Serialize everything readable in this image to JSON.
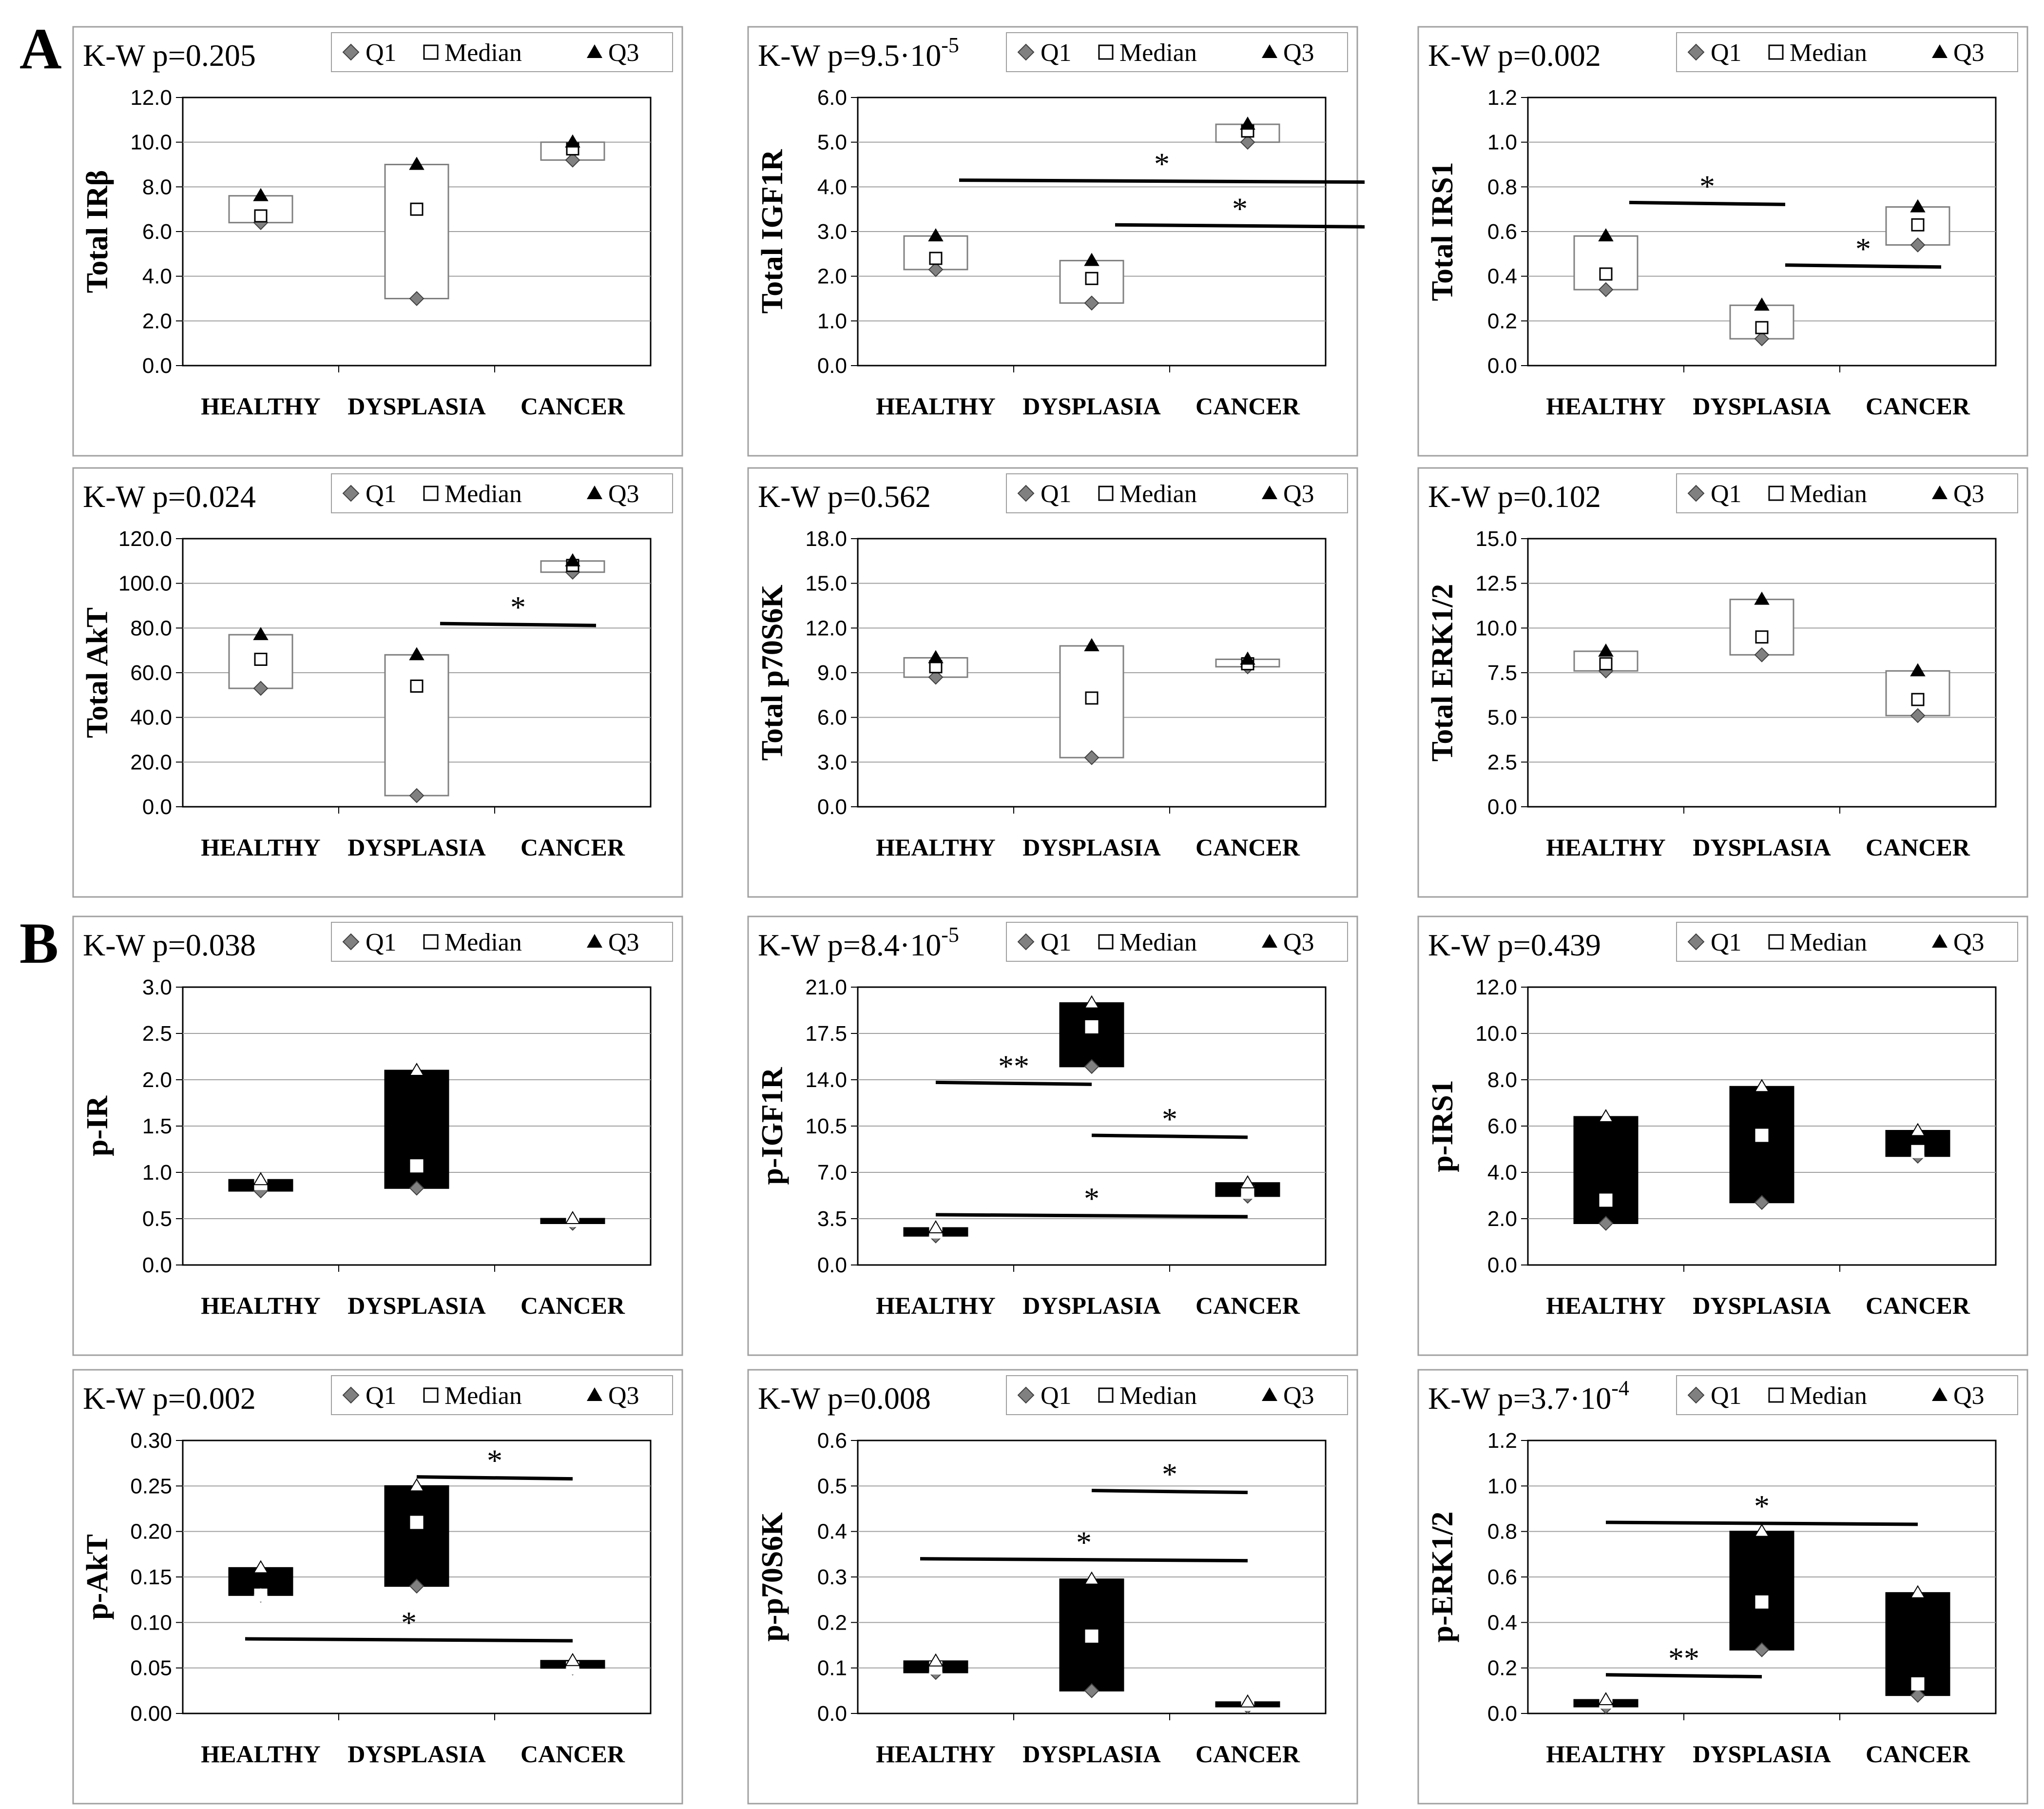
{
  "sections": [
    {
      "label": "A"
    },
    {
      "label": "B"
    }
  ],
  "colors": {
    "white_box": "#ffffff",
    "black_box": "#000000",
    "q1_marker": "#808080",
    "grid": "#a0a0a0",
    "frame": "#a0a0a0"
  },
  "legend_labels": [
    "Q1",
    "Median",
    "Q3"
  ],
  "chart_data": [
    {
      "type": "box-quartile",
      "section": "A",
      "kw": "K-W p=0.205",
      "kw_sup": "",
      "ylabel": "Total IRβ",
      "categories": [
        "HEALTHY",
        "DYSPLASIA",
        "CANCER"
      ],
      "ylim": [
        0,
        12
      ],
      "ticks": [
        "0.0",
        "2.0",
        "4.0",
        "6.0",
        "8.0",
        "10.0",
        "12.0"
      ],
      "box_style": "white",
      "q1": [
        6.4,
        3.0,
        9.2
      ],
      "median": [
        6.7,
        7.0,
        9.7
      ],
      "q3": [
        7.6,
        9.0,
        10.0
      ],
      "sig": [],
      "legend_labels": [
        "Q1",
        "Median",
        "Q3"
      ]
    },
    {
      "type": "box-quartile",
      "section": "A",
      "kw": "K-W p=9.5·10",
      "kw_sup": "-5",
      "ylabel": "Total IGF1R",
      "categories": [
        "HEALTHY",
        "DYSPLASIA",
        "CANCER"
      ],
      "ylim": [
        0,
        6
      ],
      "ticks": [
        "0.0",
        "1.0",
        "2.0",
        "3.0",
        "4.0",
        "5.0",
        "6.0"
      ],
      "box_style": "white",
      "q1": [
        2.15,
        1.4,
        5.0
      ],
      "median": [
        2.4,
        1.95,
        5.25
      ],
      "q3": [
        2.9,
        2.35,
        5.4
      ],
      "sig": [
        {
          "from": 0.15,
          "to": 2.75,
          "y": 4.15,
          "label": "*"
        },
        {
          "from": 1.15,
          "to": 2.75,
          "y": 3.15,
          "label": "*"
        }
      ],
      "legend_labels": [
        "Q1",
        "Median",
        "Q3"
      ]
    },
    {
      "type": "box-quartile",
      "section": "A",
      "kw": "K-W p=0.002",
      "kw_sup": "",
      "ylabel": "Total IRS1",
      "categories": [
        "HEALTHY",
        "DYSPLASIA",
        "CANCER"
      ],
      "ylim": [
        0,
        1.2
      ],
      "ticks": [
        "0.0",
        "0.2",
        "0.4",
        "0.6",
        "0.8",
        "1.0",
        "1.2"
      ],
      "box_style": "white",
      "q1": [
        0.34,
        0.12,
        0.54
      ],
      "median": [
        0.41,
        0.17,
        0.63
      ],
      "q3": [
        0.58,
        0.27,
        0.71
      ],
      "sig": [
        {
          "from": 0.15,
          "to": 1.15,
          "y": 0.73,
          "label": "*"
        },
        {
          "from": 1.15,
          "to": 2.15,
          "y": 0.45,
          "label": "*"
        }
      ],
      "legend_labels": [
        "Q1",
        "Median",
        "Q3"
      ]
    },
    {
      "type": "box-quartile",
      "section": "A",
      "kw": "K-W p=0.024",
      "kw_sup": "",
      "ylabel": "Total AkT",
      "categories": [
        "HEALTHY",
        "DYSPLASIA",
        "CANCER"
      ],
      "ylim": [
        0,
        120
      ],
      "ticks": [
        "0.0",
        "20.0",
        "40.0",
        "60.0",
        "80.0",
        "100.0",
        "120.0"
      ],
      "box_style": "white",
      "q1": [
        53,
        5,
        105
      ],
      "median": [
        66,
        54,
        108
      ],
      "q3": [
        77,
        68,
        110
      ],
      "sig": [
        {
          "from": 1.15,
          "to": 2.15,
          "y": 82,
          "label": "*"
        }
      ],
      "legend_labels": [
        "Q1",
        "Median",
        "Q3"
      ]
    },
    {
      "type": "box-quartile",
      "section": "A",
      "kw": "K-W p=0.562",
      "kw_sup": "",
      "ylabel": "Total p70S6K",
      "categories": [
        "HEALTHY",
        "DYSPLASIA",
        "CANCER"
      ],
      "ylim": [
        0,
        18
      ],
      "ticks": [
        "0.0",
        "3.0",
        "6.0",
        "9.0",
        "12.0",
        "15.0",
        "18.0"
      ],
      "box_style": "white",
      "q1": [
        8.7,
        3.3,
        9.4
      ],
      "median": [
        9.4,
        7.3,
        9.6
      ],
      "q3": [
        10.0,
        10.8,
        9.9
      ],
      "sig": [],
      "legend_labels": [
        "Q1",
        "Median",
        "Q3"
      ]
    },
    {
      "type": "box-quartile",
      "section": "A",
      "kw": "K-W p=0.102",
      "kw_sup": "",
      "ylabel": "Total ERK1/2",
      "categories": [
        "HEALTHY",
        "DYSPLASIA",
        "CANCER"
      ],
      "ylim": [
        0,
        15
      ],
      "ticks": [
        "0.0",
        "2.5",
        "5.0",
        "7.5",
        "10.0",
        "12.5",
        "15.0"
      ],
      "box_style": "white",
      "q1": [
        7.6,
        8.5,
        5.1
      ],
      "median": [
        8.0,
        9.5,
        6.0
      ],
      "q3": [
        8.7,
        11.6,
        7.6
      ],
      "sig": [],
      "legend_labels": [
        "Q1",
        "Median",
        "Q3"
      ]
    },
    {
      "type": "box-quartile",
      "section": "B",
      "kw": "K-W p=0.038",
      "kw_sup": "",
      "ylabel": "p-IR",
      "categories": [
        "HEALTHY",
        "DYSPLASIA",
        "CANCER"
      ],
      "ylim": [
        0,
        3
      ],
      "ticks": [
        "0.0",
        "0.5",
        "1.0",
        "1.5",
        "2.0",
        "2.5",
        "3.0"
      ],
      "box_style": "black",
      "q1": [
        0.8,
        0.83,
        0.45
      ],
      "median": [
        0.88,
        1.07,
        0.48
      ],
      "q3": [
        0.92,
        2.1,
        0.5
      ],
      "sig": [],
      "legend_labels": [
        "Q1",
        "Median",
        "Q3"
      ]
    },
    {
      "type": "box-quartile",
      "section": "B",
      "kw": "K-W p=8.4·10",
      "kw_sup": "-5",
      "ylabel": "p-IGF1R",
      "categories": [
        "HEALTHY",
        "DYSPLASIA",
        "CANCER"
      ],
      "ylim": [
        0,
        21
      ],
      "ticks": [
        "0.0",
        "3.5",
        "7.0",
        "10.5",
        "14.0",
        "17.5",
        "21.0"
      ],
      "box_style": "black",
      "q1": [
        2.2,
        15.0,
        5.2
      ],
      "median": [
        2.5,
        18.0,
        5.5
      ],
      "q3": [
        2.8,
        19.8,
        6.2
      ],
      "sig": [
        {
          "from": 0.0,
          "to": 1.0,
          "y": 13.8,
          "label": "**"
        },
        {
          "from": 1.0,
          "to": 2.0,
          "y": 9.8,
          "label": "*"
        },
        {
          "from": 0.0,
          "to": 2.0,
          "y": 3.8,
          "label": "*"
        }
      ],
      "legend_labels": [
        "Q1",
        "Median",
        "Q3"
      ]
    },
    {
      "type": "box-quartile",
      "section": "B",
      "kw": "K-W p=0.439",
      "kw_sup": "",
      "ylabel": "p-IRS1",
      "categories": [
        "HEALTHY",
        "DYSPLASIA",
        "CANCER"
      ],
      "ylim": [
        0,
        12
      ],
      "ticks": [
        "0.0",
        "2.0",
        "4.0",
        "6.0",
        "8.0",
        "10.0",
        "12.0"
      ],
      "box_style": "black",
      "q1": [
        1.8,
        2.7,
        4.7
      ],
      "median": [
        2.8,
        5.6,
        4.9
      ],
      "q3": [
        6.4,
        7.7,
        5.8
      ],
      "sig": [],
      "legend_labels": [
        "Q1",
        "Median",
        "Q3"
      ]
    },
    {
      "type": "box-quartile",
      "section": "B",
      "kw": "K-W p=0.002",
      "kw_sup": "",
      "ylabel": "p-AkT",
      "categories": [
        "HEALTHY",
        "DYSPLASIA",
        "CANCER"
      ],
      "ylim": [
        0,
        0.3
      ],
      "ticks": [
        "0.00",
        "0.05",
        "0.10",
        "0.15",
        "0.20",
        "0.25",
        "0.30"
      ],
      "box_style": "black",
      "q1": [
        0.13,
        0.14,
        0.05
      ],
      "median": [
        0.13,
        0.21,
        0.05
      ],
      "q3": [
        0.16,
        0.25,
        0.058
      ],
      "sig": [
        {
          "from": 1.0,
          "to": 2.0,
          "y": 0.26,
          "label": "*"
        },
        {
          "from": -0.1,
          "to": 2.0,
          "y": 0.082,
          "label": "*"
        }
      ],
      "legend_labels": [
        "Q1",
        "Median",
        "Q3"
      ]
    },
    {
      "type": "box-quartile",
      "section": "B",
      "kw": "K-W p=0.008",
      "kw_sup": "",
      "ylabel": "p-p70S6K",
      "categories": [
        "HEALTHY",
        "DYSPLASIA",
        "CANCER"
      ],
      "ylim": [
        0,
        0.6
      ],
      "ticks": [
        "0.0",
        "0.1",
        "0.2",
        "0.3",
        "0.4",
        "0.5",
        "0.6"
      ],
      "box_style": "black",
      "q1": [
        0.09,
        0.05,
        0.015
      ],
      "median": [
        0.1,
        0.17,
        0.02
      ],
      "q3": [
        0.115,
        0.295,
        0.025
      ],
      "sig": [
        {
          "from": 1.0,
          "to": 2.0,
          "y": 0.49,
          "label": "*"
        },
        {
          "from": -0.1,
          "to": 2.0,
          "y": 0.34,
          "label": "*"
        }
      ],
      "legend_labels": [
        "Q1",
        "Median",
        "Q3"
      ]
    },
    {
      "type": "box-quartile",
      "section": "B",
      "kw": "K-W p=3.7·10",
      "kw_sup": "-4",
      "ylabel": "p-ERK1/2",
      "categories": [
        "HEALTHY",
        "DYSPLASIA",
        "CANCER"
      ],
      "ylim": [
        0,
        1.2
      ],
      "ticks": [
        "0.0",
        "0.2",
        "0.4",
        "0.6",
        "0.8",
        "1.0",
        "1.2"
      ],
      "box_style": "black",
      "q1": [
        0.03,
        0.28,
        0.08
      ],
      "median": [
        0.05,
        0.49,
        0.13
      ],
      "q3": [
        0.06,
        0.8,
        0.53
      ],
      "sig": [
        {
          "from": 0.0,
          "to": 2.0,
          "y": 0.84,
          "label": "*"
        },
        {
          "from": 0.0,
          "to": 1.0,
          "y": 0.17,
          "label": "**"
        }
      ],
      "legend_labels": [
        "Q1",
        "Median",
        "Q3"
      ]
    }
  ]
}
